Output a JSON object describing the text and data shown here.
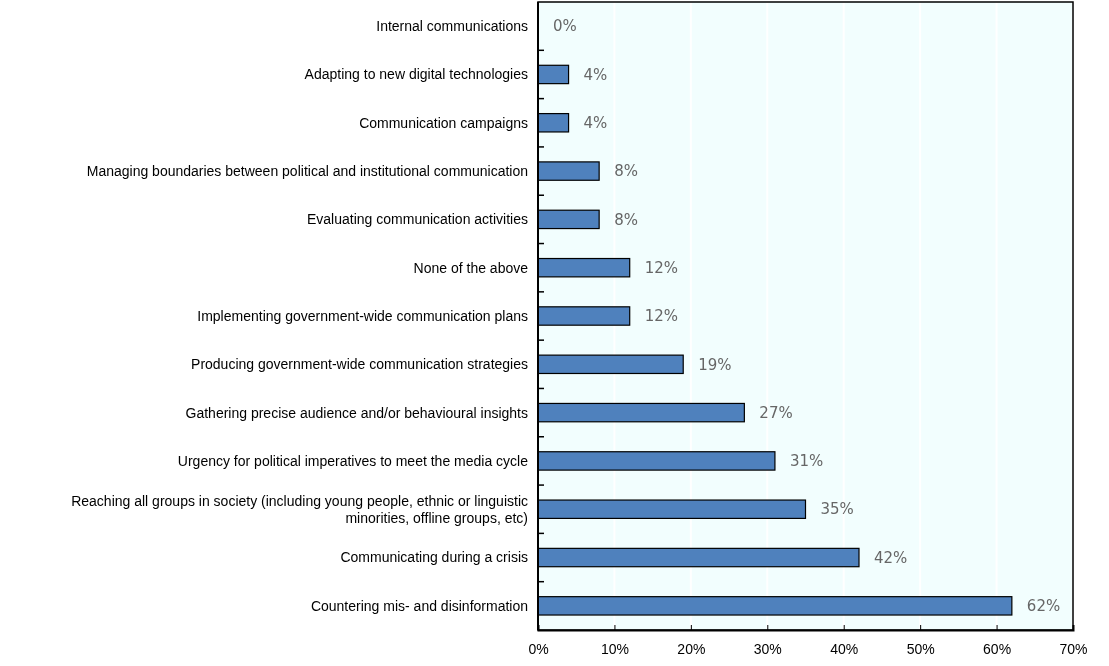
{
  "chart_data": {
    "type": "bar",
    "orientation": "horizontal",
    "categories": [
      "Internal communications",
      "Adapting to new digital technologies",
      "Communication campaigns",
      "Managing boundaries between political and institutional communication",
      "Evaluating communication activities",
      "None of the above",
      "Implementing government-wide communication plans",
      "Producing government-wide communication strategies",
      "Gathering precise audience and/or behavioural insights",
      "Urgency for political imperatives to meet the media cycle",
      "Reaching all groups in society (including young people, ethnic or linguistic minorities, offline groups, etc)",
      "Communicating during a crisis",
      "Countering mis- and disinformation"
    ],
    "values": [
      0,
      4,
      4,
      8,
      8,
      12,
      12,
      19,
      27,
      31,
      35,
      42,
      62
    ],
    "value_labels": [
      "0%",
      "4%",
      "4%",
      "8%",
      "8%",
      "12%",
      "12%",
      "19%",
      "27%",
      "31%",
      "35%",
      "42%",
      "62%"
    ],
    "color": "#4f81bd",
    "grid": "x",
    "xlim": [
      0,
      70
    ],
    "xticks": [
      {
        "value": 0,
        "label": "0%"
      },
      {
        "value": 10,
        "label": "10%"
      },
      {
        "value": 20,
        "label": "20%"
      },
      {
        "value": 30,
        "label": "30%"
      },
      {
        "value": 40,
        "label": "40%"
      },
      {
        "value": 50,
        "label": "50%"
      },
      {
        "value": 60,
        "label": "60%"
      },
      {
        "value": 70,
        "label": "70%"
      }
    ]
  }
}
